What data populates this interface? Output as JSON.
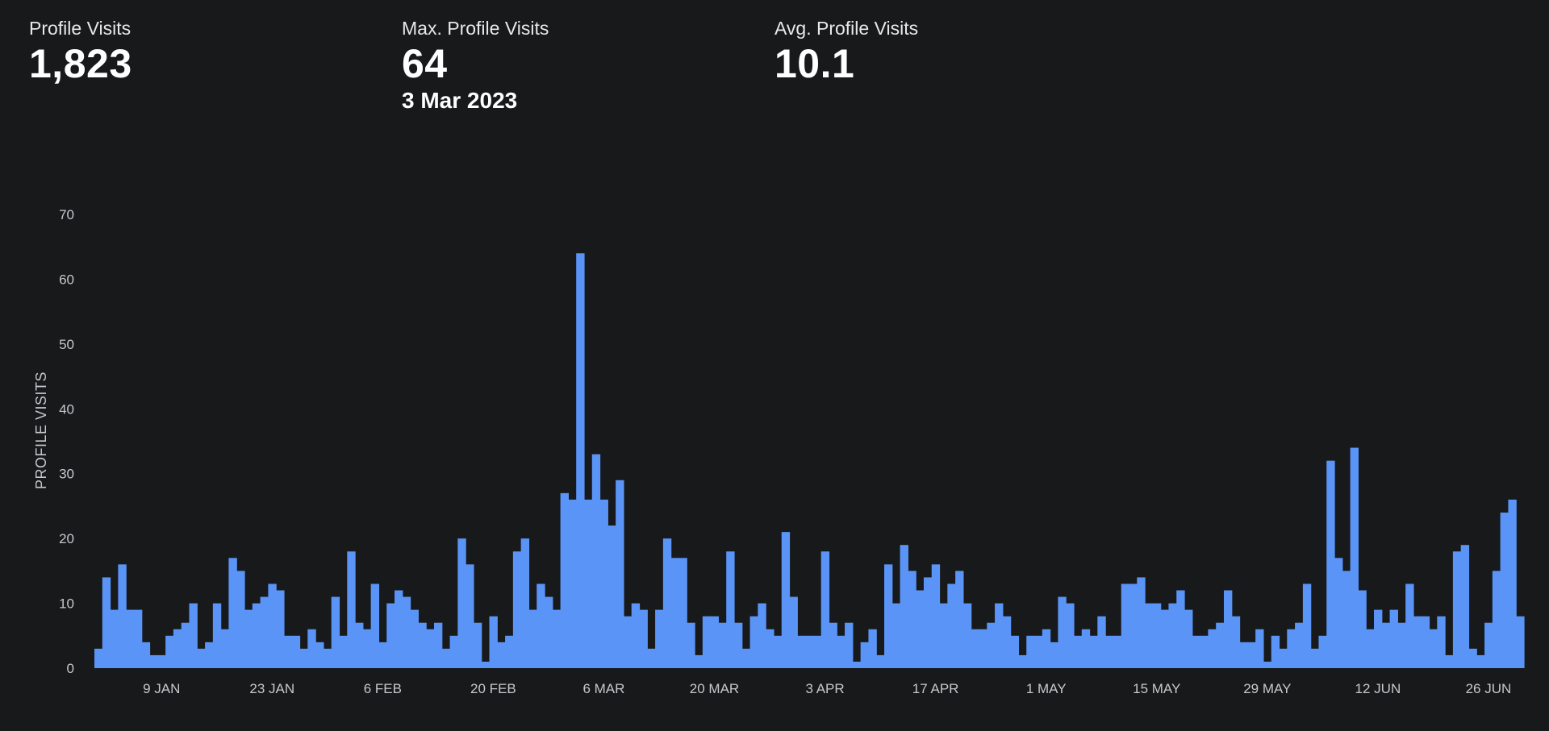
{
  "stats": {
    "total": {
      "label": "Profile Visits",
      "value": "1,823"
    },
    "max": {
      "label": "Max. Profile Visits",
      "value": "64",
      "date": "3 Mar 2023"
    },
    "avg": {
      "label": "Avg. Profile Visits",
      "value": "10.1"
    }
  },
  "colors": {
    "background": "#18191b",
    "bar": "#5a94f6",
    "text": "#ffffff"
  },
  "chart_data": {
    "type": "bar",
    "ylabel": "PROFILE VISITS",
    "ylim": [
      0,
      70
    ],
    "yticks": [
      0,
      10,
      20,
      30,
      40,
      50,
      60,
      70
    ],
    "grid": false,
    "x_start": "2023-01-01",
    "x_end": "2023-06-30",
    "xtick_labels": [
      {
        "label": "9 JAN",
        "date": "2023-01-09"
      },
      {
        "label": "23 JAN",
        "date": "2023-01-23"
      },
      {
        "label": "6 FEB",
        "date": "2023-02-06"
      },
      {
        "label": "20 FEB",
        "date": "2023-02-20"
      },
      {
        "label": "6 MAR",
        "date": "2023-03-06"
      },
      {
        "label": "20 MAR",
        "date": "2023-03-20"
      },
      {
        "label": "3 APR",
        "date": "2023-04-03"
      },
      {
        "label": "17 APR",
        "date": "2023-04-17"
      },
      {
        "label": "1 MAY",
        "date": "2023-05-01"
      },
      {
        "label": "15 MAY",
        "date": "2023-05-15"
      },
      {
        "label": "29 MAY",
        "date": "2023-05-29"
      },
      {
        "label": "12 JUN",
        "date": "2023-06-12"
      },
      {
        "label": "26 JUN",
        "date": "2023-06-26"
      }
    ],
    "values": [
      3,
      14,
      9,
      16,
      9,
      9,
      4,
      2,
      2,
      5,
      6,
      7,
      10,
      3,
      4,
      10,
      6,
      17,
      15,
      9,
      10,
      11,
      13,
      12,
      5,
      5,
      3,
      6,
      4,
      3,
      11,
      5,
      18,
      7,
      6,
      13,
      4,
      10,
      12,
      11,
      9,
      7,
      6,
      7,
      3,
      5,
      20,
      16,
      7,
      1,
      8,
      4,
      5,
      18,
      20,
      9,
      13,
      11,
      9,
      27,
      26,
      64,
      26,
      33,
      26,
      22,
      29,
      8,
      10,
      9,
      3,
      9,
      20,
      17,
      17,
      7,
      2,
      8,
      8,
      7,
      18,
      7,
      3,
      8,
      10,
      6,
      5,
      21,
      11,
      5,
      5,
      5,
      18,
      7,
      5,
      7,
      1,
      4,
      6,
      2,
      16,
      10,
      19,
      15,
      12,
      14,
      16,
      10,
      13,
      15,
      10,
      6,
      6,
      7,
      10,
      8,
      5,
      2,
      5,
      5,
      6,
      4,
      11,
      10,
      5,
      6,
      5,
      8,
      5,
      5,
      13,
      13,
      14,
      10,
      10,
      9,
      10,
      12,
      9,
      5,
      5,
      6,
      7,
      12,
      8,
      4,
      4,
      6,
      1,
      5,
      3,
      6,
      7,
      13,
      3,
      5,
      32,
      17,
      15,
      34,
      12,
      6,
      9,
      7,
      9,
      7,
      13,
      8,
      8,
      6,
      8,
      2,
      18,
      19,
      3,
      2,
      7,
      15,
      24,
      26,
      8
    ]
  }
}
